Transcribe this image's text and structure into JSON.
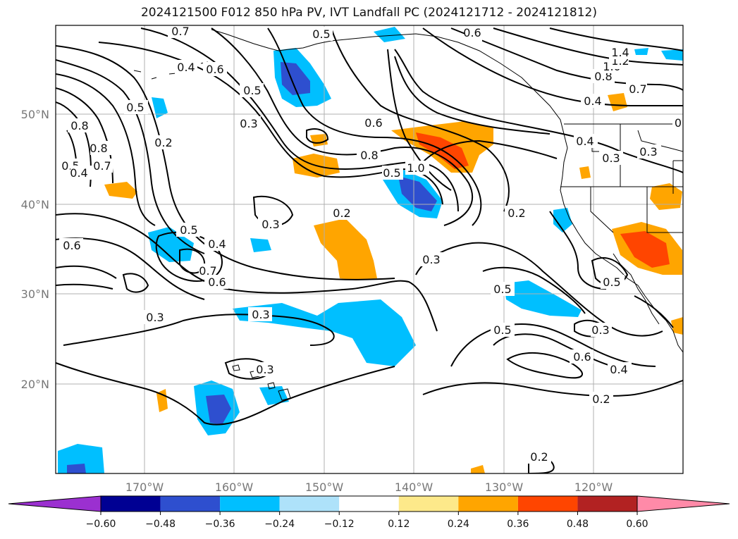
{
  "title": "2024121500 F012 850 hPa PV, IVT Landfall PC (2024121712 - 2024121812)",
  "map": {
    "lon_ticks": [
      "170°W",
      "160°W",
      "150°W",
      "140°W",
      "130°W",
      "120°W"
    ],
    "lat_ticks": [
      "50°N",
      "40°N",
      "30°N",
      "20°N"
    ],
    "gridlines": true
  },
  "contour_labels": [
    "0.7",
    "0.5",
    "0.4",
    "0.6",
    "0.5",
    "0.3",
    "0.2",
    "0.5",
    "0.8",
    "0.5",
    "0.7",
    "0.4",
    "0.6",
    "0.5",
    "0.4",
    "0.7",
    "0.6",
    "0.3",
    "0.3",
    "0.2",
    "0.3",
    "0.8",
    "0.6",
    "0.5",
    "1.0",
    "0.2",
    "0.3",
    "0.5",
    "0.5",
    "0.6",
    "0.3",
    "0.4",
    "0.2",
    "0.2",
    "0.4",
    "0.3",
    "0.8",
    "1.0",
    "1.2",
    "1.4",
    "0.7",
    "0.4",
    "0.3",
    "0",
    "0.5",
    "0.8",
    "0.6",
    "0.3"
  ],
  "colorbar": {
    "ticks": [
      "−0.60",
      "−0.48",
      "−0.36",
      "−0.24",
      "−0.12",
      "0.12",
      "0.24",
      "0.36",
      "0.48",
      "0.60"
    ],
    "colors": [
      "#9b30d0",
      "#000093",
      "#2e4fcf",
      "#00bfff",
      "#aee2fa",
      "#ffffff",
      "#fde98a",
      "#ffa500",
      "#ff4500",
      "#b22222",
      "#ff8aa8"
    ]
  }
}
